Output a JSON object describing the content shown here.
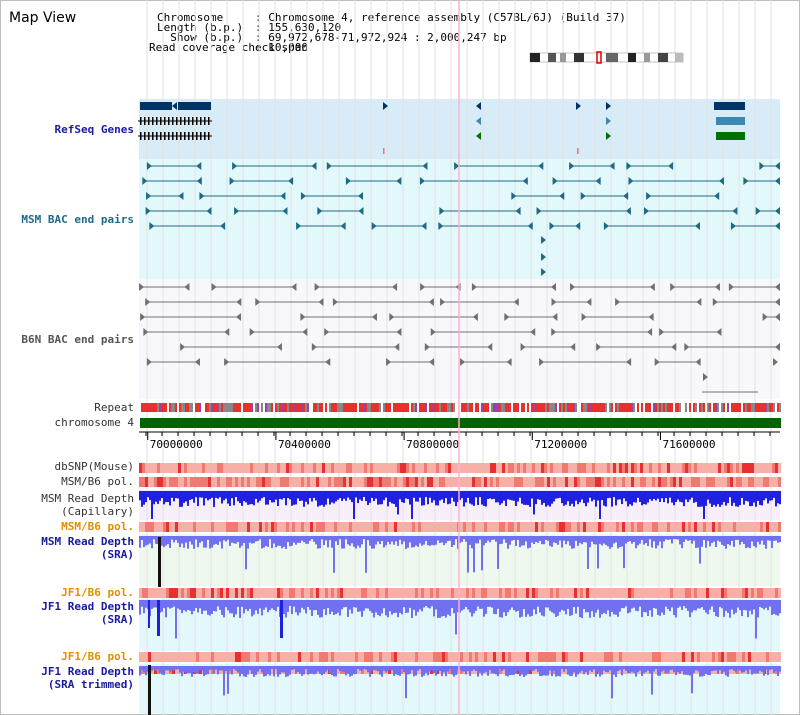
{
  "map_title": "Map View",
  "info": {
    "chromosome_key": "Chromosome",
    "chromosome_value": ": Chromosome 4, reference assembly (C57BL/6J) (Build 37)",
    "length_key": "Length (b.p.)",
    "length_value": ": 155,630,120",
    "show_key": "  Show (b.p.)",
    "show_value": ": 69,972,678-71,972,924 : 2,000,247 bp",
    "coverage_key": "Read coverage check span",
    "coverage_value": ": 10,000"
  },
  "tracks": {
    "refseq": "RefSeq Genes",
    "msm_bac": "MSM BAC end pairs",
    "b6n_bac": "B6N BAC end pairs",
    "repeat": "Repeat",
    "chromosome": "chromosome 4",
    "dbsnp": "dbSNP(Mouse)",
    "msm_b6_pol_1": "MSM/B6 pol.",
    "msm_read_depth_cap_1": "MSM Read Depth",
    "msm_read_depth_cap_2": "(Capillary)",
    "msm_b6_pol_2": "MSM/B6 pol.",
    "msm_read_depth_sra_1": "MSM Read Depth",
    "msm_read_depth_sra_2": "(SRA)",
    "jf1_b6_pol_1": "JF1/B6 pol.",
    "jf1_read_depth_sra_1": "JF1 Read Depth",
    "jf1_read_depth_sra_2": "(SRA)",
    "jf1_b6_pol_2": "JF1/B6 pol.",
    "jf1_read_depth_trim_1": "JF1 Read Depth",
    "jf1_read_depth_trim_2": "(SRA trimmed)"
  },
  "ruler": {
    "ticks": [
      {
        "value": 70000000,
        "label": "70000000"
      },
      {
        "value": 70400000,
        "label": "70400000"
      },
      {
        "value": 70800000,
        "label": "70800000"
      },
      {
        "value": 71200000,
        "label": "71200000"
      },
      {
        "value": 71600000,
        "label": "71600000"
      }
    ],
    "start": 69972678,
    "end": 71972924
  },
  "colors": {
    "refseq_bg": "#d8ecf8",
    "msm_bac_bg": "#e2f8fa",
    "b6n_bac_bg": "#f8f8fc",
    "chromosome_bar": "#006400",
    "gene_navy": "#003366",
    "gene_teal": "#3a88b0",
    "gene_green": "#007000",
    "depth_blue": "#2020e0",
    "depth_light": "#7070f0",
    "snp_light": "#f6b0a8",
    "snp_dark": "#e83030"
  }
}
